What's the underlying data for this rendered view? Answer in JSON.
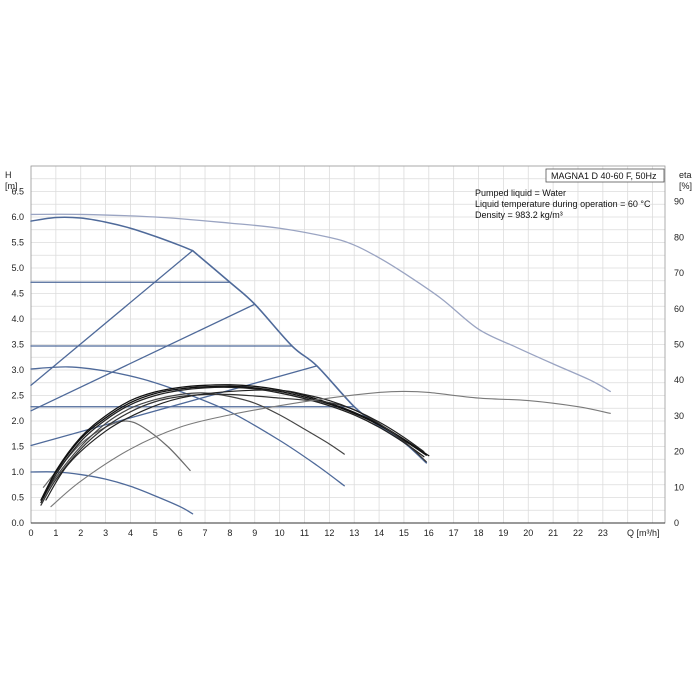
{
  "chart_data": {
    "type": "line",
    "title": "MAGNA1 D 40-60 F, 50Hz",
    "info_lines": [
      "Pumped liquid = Water",
      "Liquid temperature during operation = 60 °C",
      "Density = 983.2 kg/m³"
    ],
    "ylabel": "H",
    "yunit": "[m]",
    "y2label": "eta",
    "y2unit": "[%]",
    "xlabel": "Q [m³/h]",
    "xlim": [
      0,
      25.5
    ],
    "ylim": [
      0,
      7.0
    ],
    "y2lim": [
      0,
      100
    ],
    "x_ticks": [
      0,
      1,
      2,
      3,
      4,
      5,
      6,
      7,
      8,
      9,
      10,
      11,
      12,
      13,
      14,
      15,
      16,
      17,
      18,
      19,
      20,
      21,
      22,
      23
    ],
    "y_ticks": [
      "0.0",
      "0.5",
      "1.0",
      "1.5",
      "2.0",
      "2.5",
      "3.0",
      "3.5",
      "4.0",
      "4.5",
      "5.0",
      "5.5",
      "6.0",
      "6.5"
    ],
    "y2_ticks": [
      "0",
      "10",
      "20",
      "30",
      "40",
      "50",
      "60",
      "70",
      "80",
      "90"
    ],
    "grid": true,
    "series": [
      {
        "group": "head_twin",
        "color": "#9aa4c2",
        "width": 1.3,
        "points": [
          [
            0,
            6.05
          ],
          [
            2,
            6.05
          ],
          [
            5,
            6.0
          ],
          [
            8,
            5.88
          ],
          [
            10,
            5.78
          ],
          [
            12,
            5.6
          ],
          [
            13,
            5.45
          ],
          [
            14,
            5.2
          ],
          [
            15,
            4.9
          ],
          [
            16.5,
            4.4
          ],
          [
            18,
            3.8
          ],
          [
            19.5,
            3.45
          ],
          [
            21,
            3.12
          ],
          [
            22.5,
            2.8
          ],
          [
            23.3,
            2.58
          ]
        ]
      },
      {
        "group": "head_single",
        "color": "#4f6a9a",
        "width": 1.5,
        "points": [
          [
            0,
            5.92
          ],
          [
            1,
            5.99
          ],
          [
            2,
            5.98
          ],
          [
            3,
            5.9
          ],
          [
            4,
            5.78
          ],
          [
            5,
            5.62
          ],
          [
            6,
            5.44
          ],
          [
            6.5,
            5.34
          ]
        ]
      },
      {
        "group": "head_single",
        "color": "#4f6a9a",
        "width": 1.3,
        "points": [
          [
            0,
            3.02
          ],
          [
            1.5,
            3.06
          ],
          [
            3,
            2.98
          ],
          [
            4.5,
            2.82
          ],
          [
            6,
            2.58
          ],
          [
            8,
            2.18
          ],
          [
            10,
            1.62
          ],
          [
            11.5,
            1.13
          ],
          [
            12.6,
            0.73
          ]
        ]
      },
      {
        "group": "head_single",
        "color": "#4f6a9a",
        "width": 1.3,
        "points": [
          [
            0,
            1.0
          ],
          [
            1,
            1.0
          ],
          [
            2,
            0.95
          ],
          [
            3,
            0.86
          ],
          [
            4,
            0.72
          ],
          [
            5,
            0.53
          ],
          [
            6,
            0.32
          ],
          [
            6.5,
            0.18
          ]
        ]
      },
      {
        "group": "max_curve",
        "color": "#4f6a9a",
        "width": 1.6,
        "points": [
          [
            6.5,
            5.34
          ],
          [
            8,
            4.72
          ],
          [
            9,
            4.29
          ],
          [
            10.5,
            3.47
          ],
          [
            11.5,
            3.08
          ],
          [
            13,
            2.28
          ],
          [
            14,
            1.9
          ],
          [
            15,
            1.58
          ],
          [
            15.9,
            1.18
          ]
        ]
      },
      {
        "group": "prop_pressure",
        "color": "#4f6a9a",
        "width": 1.3,
        "points": [
          [
            0,
            2.7
          ],
          [
            6.5,
            5.34
          ]
        ]
      },
      {
        "group": "prop_pressure",
        "color": "#4f6a9a",
        "width": 1.3,
        "points": [
          [
            0,
            2.2
          ],
          [
            9,
            4.29
          ]
        ]
      },
      {
        "group": "prop_pressure",
        "color": "#4f6a9a",
        "width": 1.3,
        "points": [
          [
            0,
            1.52
          ],
          [
            11.5,
            3.08
          ]
        ]
      },
      {
        "group": "const_pressure",
        "color": "#4f6a9a",
        "width": 1.3,
        "points": [
          [
            0,
            4.72
          ],
          [
            8,
            4.72
          ]
        ]
      },
      {
        "group": "const_pressure",
        "color": "#4f6a9a",
        "width": 1.3,
        "points": [
          [
            0,
            3.47
          ],
          [
            10.5,
            3.47
          ]
        ]
      },
      {
        "group": "const_pressure",
        "color": "#4f6a9a",
        "width": 1.3,
        "points": [
          [
            0,
            2.28
          ],
          [
            13,
            2.28
          ]
        ]
      },
      {
        "group": "eta",
        "color": "#6a6a6a",
        "width": 1.2,
        "points": [
          [
            0.5,
            0.7
          ],
          [
            1,
            1.0
          ],
          [
            2,
            1.55
          ],
          [
            3,
            1.88
          ],
          [
            3.8,
            2.0
          ],
          [
            4.5,
            1.88
          ],
          [
            5.5,
            1.5
          ],
          [
            6.4,
            1.03
          ]
        ]
      },
      {
        "group": "eta",
        "color": "#444444",
        "width": 1.2,
        "points": [
          [
            0.5,
            0.5
          ],
          [
            1,
            0.9
          ],
          [
            2,
            1.5
          ],
          [
            3,
            1.95
          ],
          [
            4,
            2.25
          ],
          [
            5,
            2.42
          ],
          [
            6,
            2.52
          ],
          [
            7,
            2.55
          ],
          [
            8,
            2.48
          ],
          [
            9,
            2.35
          ],
          [
            10,
            2.12
          ],
          [
            11,
            1.84
          ],
          [
            12,
            1.55
          ],
          [
            12.6,
            1.35
          ]
        ]
      },
      {
        "group": "eta",
        "color": "#222222",
        "width": 1.3,
        "points": [
          [
            0.4,
            0.4
          ],
          [
            1,
            0.95
          ],
          [
            2,
            1.6
          ],
          [
            3,
            2.02
          ],
          [
            4,
            2.32
          ],
          [
            5,
            2.5
          ],
          [
            6,
            2.6
          ],
          [
            7,
            2.65
          ],
          [
            8,
            2.66
          ],
          [
            9,
            2.63
          ],
          [
            10,
            2.55
          ],
          [
            11,
            2.44
          ],
          [
            12,
            2.3
          ],
          [
            13,
            2.12
          ],
          [
            14,
            1.88
          ],
          [
            15,
            1.58
          ],
          [
            15.8,
            1.3
          ]
        ]
      },
      {
        "group": "eta",
        "color": "#111111",
        "width": 1.3,
        "points": [
          [
            0.4,
            0.45
          ],
          [
            1,
            1.0
          ],
          [
            2,
            1.65
          ],
          [
            3,
            2.06
          ],
          [
            4,
            2.36
          ],
          [
            5,
            2.54
          ],
          [
            6,
            2.63
          ],
          [
            7,
            2.67
          ],
          [
            8,
            2.68
          ],
          [
            9,
            2.65
          ],
          [
            10,
            2.58
          ],
          [
            11,
            2.47
          ],
          [
            12,
            2.33
          ],
          [
            13,
            2.15
          ],
          [
            14,
            1.92
          ],
          [
            15,
            1.62
          ],
          [
            15.9,
            1.33
          ]
        ]
      },
      {
        "group": "eta",
        "color": "#111111",
        "width": 1.3,
        "points": [
          [
            0.5,
            0.5
          ],
          [
            1,
            1.02
          ],
          [
            2,
            1.68
          ],
          [
            3,
            2.1
          ],
          [
            4,
            2.4
          ],
          [
            5,
            2.57
          ],
          [
            6,
            2.66
          ],
          [
            7,
            2.7
          ],
          [
            8,
            2.71
          ],
          [
            9,
            2.68
          ],
          [
            10,
            2.61
          ],
          [
            11,
            2.5
          ],
          [
            12,
            2.35
          ],
          [
            13,
            2.17
          ],
          [
            14,
            1.94
          ],
          [
            15,
            1.64
          ],
          [
            16,
            1.32
          ]
        ]
      },
      {
        "group": "eta",
        "color": "#333333",
        "width": 1.2,
        "points": [
          [
            0.4,
            0.35
          ],
          [
            1,
            0.85
          ],
          [
            2,
            1.45
          ],
          [
            3,
            1.88
          ],
          [
            4,
            2.18
          ],
          [
            5,
            2.38
          ],
          [
            6,
            2.48
          ],
          [
            7,
            2.52
          ],
          [
            8,
            2.52
          ],
          [
            9,
            2.49
          ],
          [
            10,
            2.45
          ],
          [
            11,
            2.41
          ],
          [
            12,
            2.36
          ],
          [
            13,
            2.22
          ],
          [
            14,
            1.95
          ],
          [
            15,
            1.6
          ],
          [
            15.9,
            1.2
          ]
        ]
      },
      {
        "group": "eta",
        "color": "#222222",
        "width": 1.2,
        "points": [
          [
            0.6,
            0.45
          ],
          [
            1.5,
            1.15
          ],
          [
            3,
            1.8
          ],
          [
            4.5,
            2.2
          ],
          [
            6,
            2.45
          ],
          [
            8,
            2.58
          ],
          [
            10,
            2.6
          ],
          [
            11,
            2.52
          ],
          [
            12,
            2.4
          ],
          [
            13,
            2.22
          ],
          [
            14,
            1.98
          ],
          [
            15,
            1.68
          ],
          [
            15.8,
            1.4
          ]
        ]
      },
      {
        "group": "eta_twin",
        "color": "#7a7a7a",
        "width": 1.1,
        "points": [
          [
            0.8,
            0.32
          ],
          [
            2,
            0.82
          ],
          [
            4,
            1.45
          ],
          [
            6,
            1.88
          ],
          [
            8,
            2.12
          ],
          [
            10,
            2.3
          ],
          [
            12,
            2.45
          ],
          [
            14,
            2.56
          ],
          [
            15,
            2.58
          ],
          [
            16,
            2.56
          ],
          [
            18,
            2.45
          ],
          [
            20,
            2.4
          ],
          [
            22,
            2.28
          ],
          [
            23.3,
            2.15
          ]
        ]
      }
    ]
  }
}
